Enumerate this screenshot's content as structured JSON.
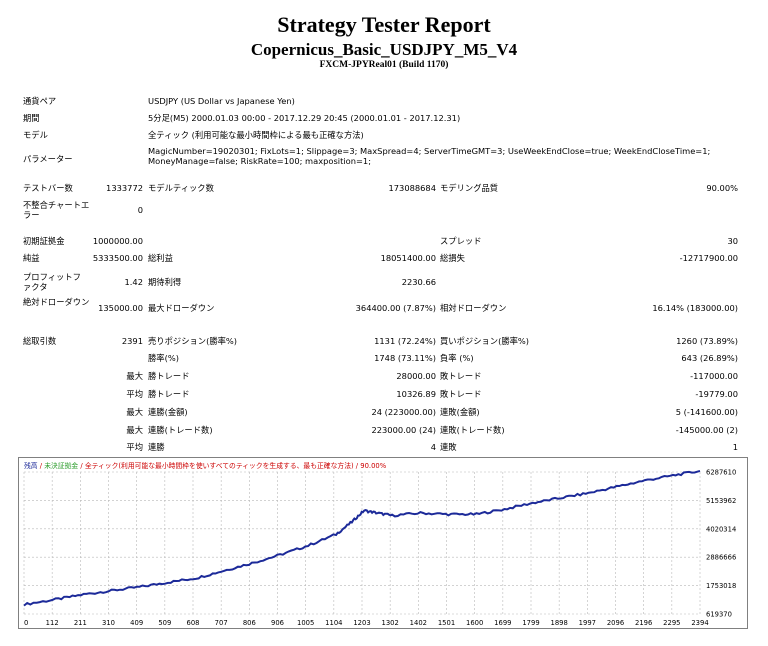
{
  "report": {
    "title": "Strategy Tester Report",
    "ea_name": "Copernicus_Basic_USDJPY_M5_V4",
    "server": "FXCM-JPYReal01 (Build 1170)"
  },
  "info": {
    "symbol_label": "通貨ペア",
    "symbol_value": "USDJPY (US Dollar vs Japanese Yen)",
    "period_label": "期間",
    "period_value": "5分足(M5) 2000.01.03 00:00 - 2017.12.29 20:45 (2000.01.01 - 2017.12.31)",
    "model_label": "モデル",
    "model_value": "全ティック (利用可能な最小時間枠による最も正確な方法)",
    "params_label": "パラメーター",
    "params_value": "MagicNumber=19020301; FixLots=1; Slippage=3; MaxSpread=4; ServerTimeGMT=3; UseWeekEndClose=true; WeekEndCloseTime=1; MoneyManage=false; RiskRate=100; maxposition=1;"
  },
  "stats1": {
    "bars_label": "テストバー数",
    "bars_value": "1333772",
    "ticks_label": "モデルティック数",
    "ticks_value": "173088684",
    "quality_label": "モデリング品質",
    "quality_value": "90.00%",
    "mismatch_label": "不整合チャートエラー",
    "mismatch_value": "0"
  },
  "stats2": {
    "deposit_label": "初期証拠金",
    "deposit_value": "1000000.00",
    "spread_label": "スプレッド",
    "spread_value": "30",
    "net_label": "純益",
    "net_value": "5333500.00",
    "gross_profit_label": "総利益",
    "gross_profit_value": "18051400.00",
    "gross_loss_label": "総損失",
    "gross_loss_value": "-12717900.00",
    "pf_label": "プロフィットファクタ",
    "pf_value": "1.42",
    "payoff_label": "期待利得",
    "payoff_value": "2230.66",
    "abs_dd_label": "絶対ドローダウン",
    "abs_dd_value": "135000.00",
    "max_dd_label": "最大ドローダウン",
    "max_dd_value": "364400.00 (7.87%)",
    "rel_dd_label": "相対ドローダウン",
    "rel_dd_value": "16.14% (183000.00)"
  },
  "stats3": {
    "total_label": "総取引数",
    "total_value": "2391",
    "short_label": "売りポジション(勝率%)",
    "short_value": "1131 (72.24%)",
    "long_label": "買いポジション(勝率%)",
    "long_value": "1260 (73.89%)",
    "win_label": "勝率(%)",
    "win_value": "1748 (73.11%)",
    "loss_label": "負率 (%)",
    "loss_value": "643 (26.89%)",
    "max_label": "最大",
    "avg_label": "平均",
    "largest_win_label": "勝トレード",
    "largest_win_value": "28000.00",
    "largest_loss_label": "敗トレード",
    "largest_loss_value": "-117000.00",
    "avg_win_label": "勝トレード",
    "avg_win_value": "10326.89",
    "avg_loss_label": "敗トレード",
    "avg_loss_value": "-19779.00",
    "cons_wins_money_label": "連勝(金額)",
    "cons_wins_money_value": "24 (223000.00)",
    "cons_losses_money_label": "連敗(金額)",
    "cons_losses_money_value": "5 (-141600.00)",
    "cons_profit_label": "連勝(トレード数)",
    "cons_profit_value": "223000.00 (24)",
    "cons_loss_label": "連敗(トレード数)",
    "cons_loss_value": "-145000.00 (2)",
    "avg_cons_wins_label": "連勝",
    "avg_cons_wins_value": "4",
    "avg_cons_losses_label": "連敗",
    "avg_cons_losses_value": "1"
  },
  "chart_legend": {
    "balance": "残高",
    "sep1": " / ",
    "equity": "未決証拠金",
    "sep2": " / ",
    "model_quality": "全ティック(利用可能な最小時間枠を使いすべてのティックを生成する、最も正確な方法) / 90.00%"
  },
  "chart_data": {
    "type": "line",
    "x_ticks": [
      "0",
      "112",
      "211",
      "310",
      "409",
      "509",
      "608",
      "707",
      "806",
      "906",
      "1005",
      "1104",
      "1203",
      "1302",
      "1402",
      "1501",
      "1600",
      "1699",
      "1799",
      "1898",
      "1997",
      "2096",
      "2196",
      "2295",
      "2394"
    ],
    "y_ticks": [
      "619370",
      "1753018",
      "2886666",
      "4020314",
      "5153962",
      "6287610"
    ],
    "xlim": [
      0,
      2391
    ],
    "ylim": [
      619370,
      6287610
    ],
    "grid": true,
    "series": [
      {
        "name": "残高",
        "color": "#1c2a99",
        "x": [
          0,
          112,
          211,
          310,
          409,
          509,
          608,
          707,
          806,
          906,
          1005,
          1104,
          1160,
          1203,
          1250,
          1302,
          1402,
          1501,
          1600,
          1699,
          1799,
          1898,
          1997,
          2096,
          2196,
          2295,
          2391
        ],
        "y": [
          1000000,
          1200000,
          1400000,
          1550000,
          1700000,
          1880000,
          2050000,
          2350000,
          2650000,
          2980000,
          3350000,
          3800000,
          4300000,
          4750000,
          4650000,
          4550000,
          4650000,
          4600000,
          4600000,
          4800000,
          5050000,
          5250000,
          5450000,
          5700000,
          5950000,
          6150000,
          6333500
        ]
      }
    ]
  },
  "colors": {
    "balance_line": "#1c2a99",
    "equity_legend": "#2e9e2e",
    "legend_red": "#cc0000",
    "grid": "#b8b8b8"
  }
}
